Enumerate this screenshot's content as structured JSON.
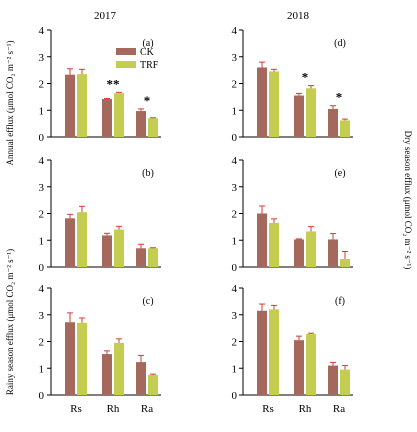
{
  "figure": {
    "column_titles": [
      "2017",
      "2018"
    ],
    "left_ylabels": {
      "annual": "Annual efflux  (μmol CO₂ m⁻² s⁻¹)",
      "rainy": "Rainy season efflux  (μmol CO₂ m⁻² s⁻¹)"
    },
    "right_ylabel": "Dry season efflux  (μmol CO₂ m⁻² s⁻¹)",
    "colors": {
      "CK": "#a4685c",
      "TRF": "#c3cd4f",
      "error_bar": "#d33b3b",
      "axis": "#000000"
    }
  },
  "chart_data": [
    {
      "type": "bar",
      "panel": "(a)",
      "categories": [
        "Rs",
        "Rh",
        "Ra"
      ],
      "ylim": [
        0,
        4
      ],
      "yticks": [
        0,
        1,
        2,
        3,
        4
      ],
      "series": [
        {
          "name": "CK",
          "values": [
            2.33,
            1.42,
            0.97
          ],
          "errors": [
            0.22,
            0.02,
            0.08
          ]
        },
        {
          "name": "TRF",
          "values": [
            2.35,
            1.64,
            0.7
          ],
          "errors": [
            0.18,
            0.03,
            0.02
          ]
        }
      ],
      "annotations": [
        "",
        "**",
        "*"
      ],
      "legend": "top-right"
    },
    {
      "type": "bar",
      "panel": "(b)",
      "categories": [
        "Rs",
        "Rh",
        "Ra"
      ],
      "ylim": [
        0,
        4
      ],
      "yticks": [
        0,
        1,
        2,
        3,
        4
      ],
      "series": [
        {
          "name": "CK",
          "values": [
            1.82,
            1.18,
            0.7
          ],
          "errors": [
            0.15,
            0.08,
            0.15
          ]
        },
        {
          "name": "TRF",
          "values": [
            2.05,
            1.4,
            0.7
          ],
          "errors": [
            0.22,
            0.12,
            0.02
          ]
        }
      ],
      "annotations": [
        "",
        "",
        ""
      ]
    },
    {
      "type": "bar",
      "panel": "(c)",
      "categories": [
        "Rs",
        "Rh",
        "Ra"
      ],
      "ylim": [
        0,
        4
      ],
      "yticks": [
        0,
        1,
        2,
        3,
        4
      ],
      "series": [
        {
          "name": "CK",
          "values": [
            2.72,
            1.53,
            1.23
          ],
          "errors": [
            0.35,
            0.12,
            0.25
          ]
        },
        {
          "name": "TRF",
          "values": [
            2.7,
            1.95,
            0.75
          ],
          "errors": [
            0.18,
            0.15,
            0.03
          ]
        }
      ],
      "annotations": [
        "",
        "",
        ""
      ]
    },
    {
      "type": "bar",
      "panel": "(d)",
      "categories": [
        "Rs",
        "Rh",
        "Ra"
      ],
      "ylim": [
        0,
        4
      ],
      "yticks": [
        0,
        1,
        2,
        3,
        4
      ],
      "series": [
        {
          "name": "CK",
          "values": [
            2.6,
            1.55,
            1.05
          ],
          "errors": [
            0.2,
            0.08,
            0.12
          ]
        },
        {
          "name": "TRF",
          "values": [
            2.45,
            1.82,
            0.62
          ],
          "errors": [
            0.08,
            0.1,
            0.05
          ]
        }
      ],
      "annotations": [
        "",
        "*",
        "*"
      ]
    },
    {
      "type": "bar",
      "panel": "(e)",
      "categories": [
        "Rs",
        "Rh",
        "Ra"
      ],
      "ylim": [
        0,
        4
      ],
      "yticks": [
        0,
        1,
        2,
        3,
        4
      ],
      "series": [
        {
          "name": "CK",
          "values": [
            2.0,
            1.03,
            1.03
          ],
          "errors": [
            0.28,
            0.02,
            0.22
          ]
        },
        {
          "name": "TRF",
          "values": [
            1.65,
            1.33,
            0.3
          ],
          "errors": [
            0.15,
            0.18,
            0.28
          ]
        }
      ],
      "annotations": [
        "",
        "",
        ""
      ]
    },
    {
      "type": "bar",
      "panel": "(f)",
      "categories": [
        "Rs",
        "Rh",
        "Ra"
      ],
      "ylim": [
        0,
        4
      ],
      "yticks": [
        0,
        1,
        2,
        3,
        4
      ],
      "series": [
        {
          "name": "CK",
          "values": [
            3.15,
            2.05,
            1.1
          ],
          "errors": [
            0.25,
            0.15,
            0.12
          ]
        },
        {
          "name": "TRF",
          "values": [
            3.2,
            2.28,
            0.95
          ],
          "errors": [
            0.15,
            0.03,
            0.15
          ]
        }
      ],
      "annotations": [
        "",
        "",
        ""
      ]
    }
  ]
}
